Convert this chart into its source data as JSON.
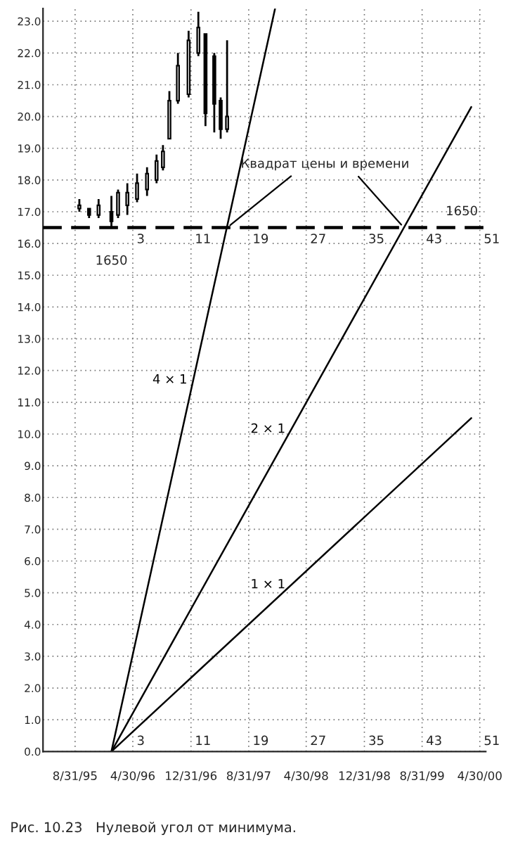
{
  "chart_data": {
    "type": "candlestick",
    "x": [
      "1995-09-18",
      "1995-10-29",
      "1995-12-08",
      "1996-01-31",
      "1996-02-28",
      "1996-04-07",
      "1996-05-18",
      "1996-06-29",
      "1996-08-08",
      "1996-09-04",
      "1996-10-01",
      "1996-11-06",
      "1996-12-21",
      "1997-01-31",
      "1997-03-02",
      "1997-04-08",
      "1997-05-05",
      "1997-06-01"
    ],
    "ohlc": [
      [
        17.1,
        17.4,
        17.0,
        17.2
      ],
      [
        17.1,
        17.1,
        16.8,
        16.9
      ],
      [
        16.9,
        17.4,
        16.8,
        17.2
      ],
      [
        17.0,
        17.5,
        16.5,
        16.7
      ],
      [
        16.9,
        17.7,
        16.8,
        17.6
      ],
      [
        17.2,
        17.9,
        16.9,
        17.6
      ],
      [
        17.4,
        18.2,
        17.3,
        17.9
      ],
      [
        17.7,
        18.4,
        17.5,
        18.2
      ],
      [
        18.0,
        18.8,
        17.9,
        18.6
      ],
      [
        18.4,
        19.1,
        18.3,
        18.9
      ],
      [
        19.3,
        20.8,
        19.3,
        20.5
      ],
      [
        20.5,
        22.0,
        20.4,
        21.6
      ],
      [
        20.7,
        22.7,
        20.6,
        22.4
      ],
      [
        22.0,
        23.3,
        21.9,
        22.8
      ],
      [
        22.6,
        22.6,
        19.7,
        20.1
      ],
      [
        21.9,
        22.0,
        19.5,
        20.4
      ],
      [
        20.5,
        20.6,
        19.3,
        19.6
      ],
      [
        19.6,
        22.4,
        19.5,
        20.0
      ]
    ],
    "series": [
      {
        "name": "4 × 1",
        "type": "line",
        "color": "#000000",
        "x": [
          "1996-01-31",
          "1997-12-20"
        ],
        "values": [
          0,
          23.4
        ]
      },
      {
        "name": "2 × 1",
        "type": "line",
        "color": "#000000",
        "x": [
          "1996-01-31",
          "2000-03-25"
        ],
        "values": [
          0,
          20.3
        ]
      },
      {
        "name": "1 × 1",
        "type": "line",
        "color": "#000000",
        "x": [
          "1996-01-31",
          "2000-03-25"
        ],
        "values": [
          0,
          10.5
        ]
      }
    ],
    "xlim": [
      "1995-04-18",
      "2000-05-25"
    ],
    "xticks": [
      {
        "value": "1995-08-31",
        "label": "8/31/95"
      },
      {
        "value": "1996-04-30",
        "label": "4/30/96"
      },
      {
        "value": "1996-12-31",
        "label": "12/31/96"
      },
      {
        "value": "1997-08-31",
        "label": "8/31/97"
      },
      {
        "value": "1998-04-30",
        "label": "4/30/98"
      },
      {
        "value": "1998-12-31",
        "label": "12/31/98"
      },
      {
        "value": "1999-08-31",
        "label": "8/31/99"
      },
      {
        "value": "2000-04-30",
        "label": "4/30/00"
      }
    ],
    "ylim": [
      0,
      23.4
    ],
    "yticks": [
      {
        "value": 0,
        "label": "0.0"
      },
      {
        "value": 1,
        "label": "1.0"
      },
      {
        "value": 2,
        "label": "2.0"
      },
      {
        "value": 3,
        "label": "3.0"
      },
      {
        "value": 4,
        "label": "4.0"
      },
      {
        "value": 5,
        "label": "5.0"
      },
      {
        "value": 6,
        "label": "6.0"
      },
      {
        "value": 7,
        "label": "7.0"
      },
      {
        "value": 8,
        "label": "8.0"
      },
      {
        "value": 9,
        "label": "9.0"
      },
      {
        "value": 10,
        "label": "10.0"
      },
      {
        "value": 11,
        "label": "11.0"
      },
      {
        "value": 12,
        "label": "12.0"
      },
      {
        "value": 13,
        "label": "13.0"
      },
      {
        "value": 14,
        "label": "14.0"
      },
      {
        "value": 15,
        "label": "15.0"
      },
      {
        "value": 16,
        "label": "16.0"
      },
      {
        "value": 17,
        "label": "17.0"
      },
      {
        "value": 18,
        "label": "18.0"
      },
      {
        "value": 19,
        "label": "19.0"
      },
      {
        "value": 20,
        "label": "20.0"
      },
      {
        "value": 21,
        "label": "21.0"
      },
      {
        "value": 22,
        "label": "22.0"
      },
      {
        "value": 23,
        "label": "23.0"
      }
    ],
    "ref_lines": [
      {
        "axis": "y",
        "value": 16.5,
        "color": "#000000",
        "line_style": "dashed"
      }
    ],
    "grid": true,
    "annotations": [
      "3",
      "11",
      "19",
      "27",
      "35",
      "43",
      "51",
      "3",
      "11",
      "19",
      "27",
      "35",
      "43",
      "51",
      "1650",
      "1650",
      {
        "text": "Квадрат цены и времени",
        "x": "1997-06-01",
        "y": 16.5
      },
      "Рис. 10.23   Нулевой угол от минимума."
    ]
  }
}
